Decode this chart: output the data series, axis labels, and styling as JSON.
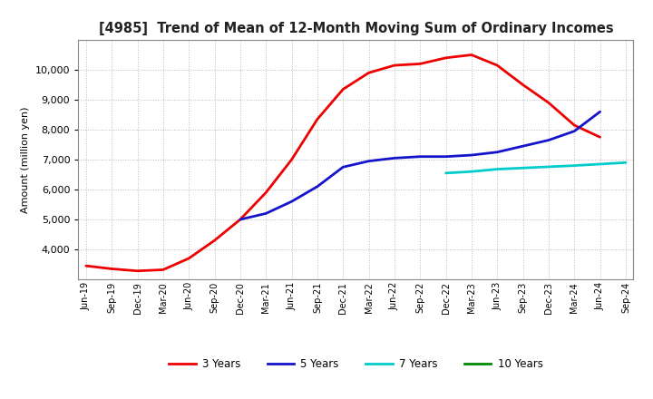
{
  "title": "[4985]  Trend of Mean of 12-Month Moving Sum of Ordinary Incomes",
  "ylabel": "Amount (million yen)",
  "background_color": "#ffffff",
  "grid_color": "#bbbbbb",
  "x_labels": [
    "Jun-19",
    "Sep-19",
    "Dec-19",
    "Mar-20",
    "Jun-20",
    "Sep-20",
    "Dec-20",
    "Mar-21",
    "Jun-21",
    "Sep-21",
    "Dec-21",
    "Mar-22",
    "Jun-22",
    "Sep-22",
    "Dec-22",
    "Mar-23",
    "Jun-23",
    "Sep-23",
    "Dec-23",
    "Mar-24",
    "Jun-24",
    "Sep-24"
  ],
  "series": {
    "3 Years": {
      "color": "#ee0000",
      "linewidth": 2.0,
      "points": [
        [
          0,
          3450
        ],
        [
          1,
          3350
        ],
        [
          2,
          3280
        ],
        [
          3,
          3320
        ],
        [
          4,
          3700
        ],
        [
          5,
          4300
        ],
        [
          6,
          5000
        ],
        [
          7,
          5900
        ],
        [
          8,
          7000
        ],
        [
          9,
          8350
        ],
        [
          10,
          9350
        ],
        [
          11,
          9900
        ],
        [
          12,
          10150
        ],
        [
          13,
          10200
        ],
        [
          14,
          10400
        ],
        [
          15,
          10500
        ],
        [
          16,
          10150
        ],
        [
          17,
          9500
        ],
        [
          18,
          8900
        ],
        [
          19,
          8150
        ],
        [
          20,
          7750
        ]
      ]
    },
    "5 Years": {
      "color": "#1414cc",
      "linewidth": 2.0,
      "points": [
        [
          6,
          5000
        ],
        [
          7,
          5200
        ],
        [
          8,
          5600
        ],
        [
          9,
          6100
        ],
        [
          10,
          6750
        ],
        [
          11,
          6950
        ],
        [
          12,
          7050
        ],
        [
          13,
          7100
        ],
        [
          14,
          7100
        ],
        [
          15,
          7150
        ],
        [
          16,
          7250
        ],
        [
          17,
          7450
        ],
        [
          18,
          7650
        ],
        [
          19,
          7950
        ],
        [
          20,
          8600
        ]
      ]
    },
    "7 Years": {
      "color": "#00cccc",
      "linewidth": 2.0,
      "points": [
        [
          14,
          6550
        ],
        [
          15,
          6600
        ],
        [
          16,
          6680
        ],
        [
          17,
          6720
        ],
        [
          18,
          6760
        ],
        [
          19,
          6800
        ],
        [
          20,
          6850
        ],
        [
          21,
          6900
        ]
      ]
    },
    "10 Years": {
      "color": "#008800",
      "linewidth": 2.0,
      "points": []
    }
  },
  "ylim": [
    3000,
    11000
  ],
  "yticks": [
    4000,
    5000,
    6000,
    7000,
    8000,
    9000,
    10000
  ],
  "legend_labels": [
    "3 Years",
    "5 Years",
    "7 Years",
    "10 Years"
  ],
  "legend_colors": [
    "#ee0000",
    "#1414cc",
    "#00cccc",
    "#008800"
  ]
}
